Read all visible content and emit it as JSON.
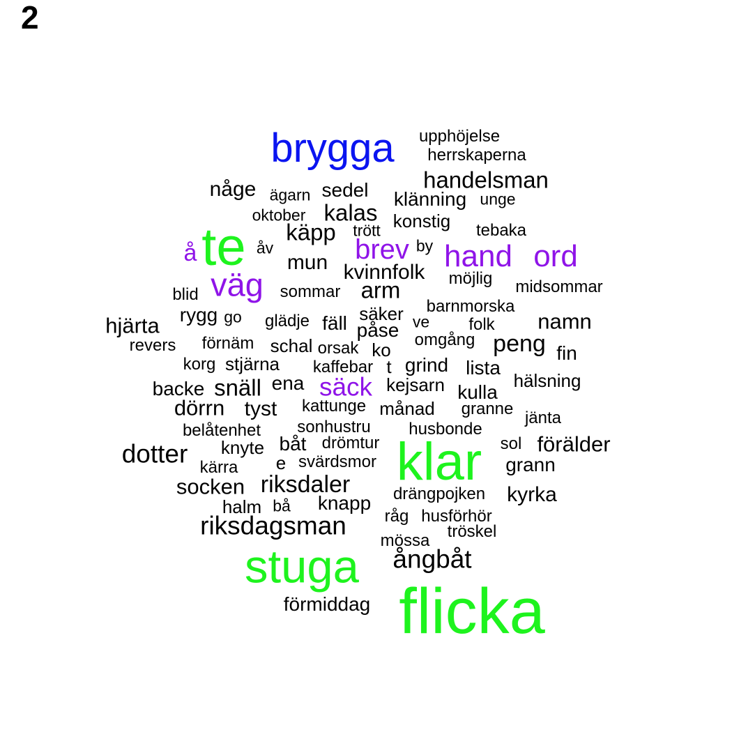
{
  "panel_label": "2",
  "colors": {
    "freq_highest": "#1ef31e",
    "freq_high": "#0a14f0",
    "freq_mid": "#8f14e8",
    "freq_low": "#000000"
  },
  "words": [
    {
      "text": "brygga",
      "tier": "freq_high"
    },
    {
      "text": "upphöjelse",
      "tier": "freq_low"
    },
    {
      "text": "herrskaperna",
      "tier": "freq_low"
    },
    {
      "text": "handelsman",
      "tier": "freq_low"
    },
    {
      "text": "någe",
      "tier": "freq_low"
    },
    {
      "text": "ägarn",
      "tier": "freq_low"
    },
    {
      "text": "sedel",
      "tier": "freq_low"
    },
    {
      "text": "klänning",
      "tier": "freq_low"
    },
    {
      "text": "unge",
      "tier": "freq_low"
    },
    {
      "text": "oktober",
      "tier": "freq_low"
    },
    {
      "text": "kalas",
      "tier": "freq_low"
    },
    {
      "text": "konstig",
      "tier": "freq_low"
    },
    {
      "text": "te",
      "tier": "freq_highest"
    },
    {
      "text": "käpp",
      "tier": "freq_low"
    },
    {
      "text": "trött",
      "tier": "freq_low"
    },
    {
      "text": "tebaka",
      "tier": "freq_low"
    },
    {
      "text": "å",
      "tier": "freq_mid"
    },
    {
      "text": "åv",
      "tier": "freq_low"
    },
    {
      "text": "brev",
      "tier": "freq_mid"
    },
    {
      "text": "by",
      "tier": "freq_low"
    },
    {
      "text": "hand",
      "tier": "freq_mid"
    },
    {
      "text": "ord",
      "tier": "freq_mid"
    },
    {
      "text": "mun",
      "tier": "freq_low"
    },
    {
      "text": "kvinnfolk",
      "tier": "freq_low"
    },
    {
      "text": "väg",
      "tier": "freq_mid"
    },
    {
      "text": "möjlig",
      "tier": "freq_low"
    },
    {
      "text": "midsommar",
      "tier": "freq_low"
    },
    {
      "text": "blid",
      "tier": "freq_low"
    },
    {
      "text": "sommar",
      "tier": "freq_low"
    },
    {
      "text": "arm",
      "tier": "freq_low"
    },
    {
      "text": "barnmorska",
      "tier": "freq_low"
    },
    {
      "text": "rygg",
      "tier": "freq_low"
    },
    {
      "text": "go",
      "tier": "freq_low"
    },
    {
      "text": "säker",
      "tier": "freq_low"
    },
    {
      "text": "hjärta",
      "tier": "freq_low"
    },
    {
      "text": "glädje",
      "tier": "freq_low"
    },
    {
      "text": "fäll",
      "tier": "freq_low"
    },
    {
      "text": "ve",
      "tier": "freq_low"
    },
    {
      "text": "folk",
      "tier": "freq_low"
    },
    {
      "text": "namn",
      "tier": "freq_low"
    },
    {
      "text": "påse",
      "tier": "freq_low"
    },
    {
      "text": "revers",
      "tier": "freq_low"
    },
    {
      "text": "förnäm",
      "tier": "freq_low"
    },
    {
      "text": "schal",
      "tier": "freq_low"
    },
    {
      "text": "orsak",
      "tier": "freq_low"
    },
    {
      "text": "ko",
      "tier": "freq_low"
    },
    {
      "text": "omgång",
      "tier": "freq_low"
    },
    {
      "text": "peng",
      "tier": "freq_low"
    },
    {
      "text": "fin",
      "tier": "freq_low"
    },
    {
      "text": "korg",
      "tier": "freq_low"
    },
    {
      "text": "stjärna",
      "tier": "freq_low"
    },
    {
      "text": "kaffebar",
      "tier": "freq_low"
    },
    {
      "text": "t",
      "tier": "freq_low"
    },
    {
      "text": "grind",
      "tier": "freq_low"
    },
    {
      "text": "lista",
      "tier": "freq_low"
    },
    {
      "text": "hälsning",
      "tier": "freq_low"
    },
    {
      "text": "backe",
      "tier": "freq_low"
    },
    {
      "text": "snäll",
      "tier": "freq_low"
    },
    {
      "text": "ena",
      "tier": "freq_low"
    },
    {
      "text": "säck",
      "tier": "freq_mid"
    },
    {
      "text": "kejsarn",
      "tier": "freq_low"
    },
    {
      "text": "kulla",
      "tier": "freq_low"
    },
    {
      "text": "dörrn",
      "tier": "freq_low"
    },
    {
      "text": "tyst",
      "tier": "freq_low"
    },
    {
      "text": "kattunge",
      "tier": "freq_low"
    },
    {
      "text": "månad",
      "tier": "freq_low"
    },
    {
      "text": "granne",
      "tier": "freq_low"
    },
    {
      "text": "jänta",
      "tier": "freq_low"
    },
    {
      "text": "belåtenhet",
      "tier": "freq_low"
    },
    {
      "text": "sonhustru",
      "tier": "freq_low"
    },
    {
      "text": "husbonde",
      "tier": "freq_low"
    },
    {
      "text": "dotter",
      "tier": "freq_low"
    },
    {
      "text": "knyte",
      "tier": "freq_low"
    },
    {
      "text": "båt",
      "tier": "freq_low"
    },
    {
      "text": "drömtur",
      "tier": "freq_low"
    },
    {
      "text": "klar",
      "tier": "freq_highest"
    },
    {
      "text": "sol",
      "tier": "freq_low"
    },
    {
      "text": "förälder",
      "tier": "freq_low"
    },
    {
      "text": "kärra",
      "tier": "freq_low"
    },
    {
      "text": "e",
      "tier": "freq_low"
    },
    {
      "text": "svärdsmor",
      "tier": "freq_low"
    },
    {
      "text": "grann",
      "tier": "freq_low"
    },
    {
      "text": "socken",
      "tier": "freq_low"
    },
    {
      "text": "riksdaler",
      "tier": "freq_low"
    },
    {
      "text": "drängpojken",
      "tier": "freq_low"
    },
    {
      "text": "kyrka",
      "tier": "freq_low"
    },
    {
      "text": "halm",
      "tier": "freq_low"
    },
    {
      "text": "bå",
      "tier": "freq_low"
    },
    {
      "text": "knapp",
      "tier": "freq_low"
    },
    {
      "text": "råg",
      "tier": "freq_low"
    },
    {
      "text": "husförhör",
      "tier": "freq_low"
    },
    {
      "text": "riksdagsman",
      "tier": "freq_low"
    },
    {
      "text": "tröskel",
      "tier": "freq_low"
    },
    {
      "text": "mössa",
      "tier": "freq_low"
    },
    {
      "text": "stuga",
      "tier": "freq_highest"
    },
    {
      "text": "ångbåt",
      "tier": "freq_low"
    },
    {
      "text": "förmiddag",
      "tier": "freq_low"
    },
    {
      "text": "flicka",
      "tier": "freq_highest"
    }
  ]
}
